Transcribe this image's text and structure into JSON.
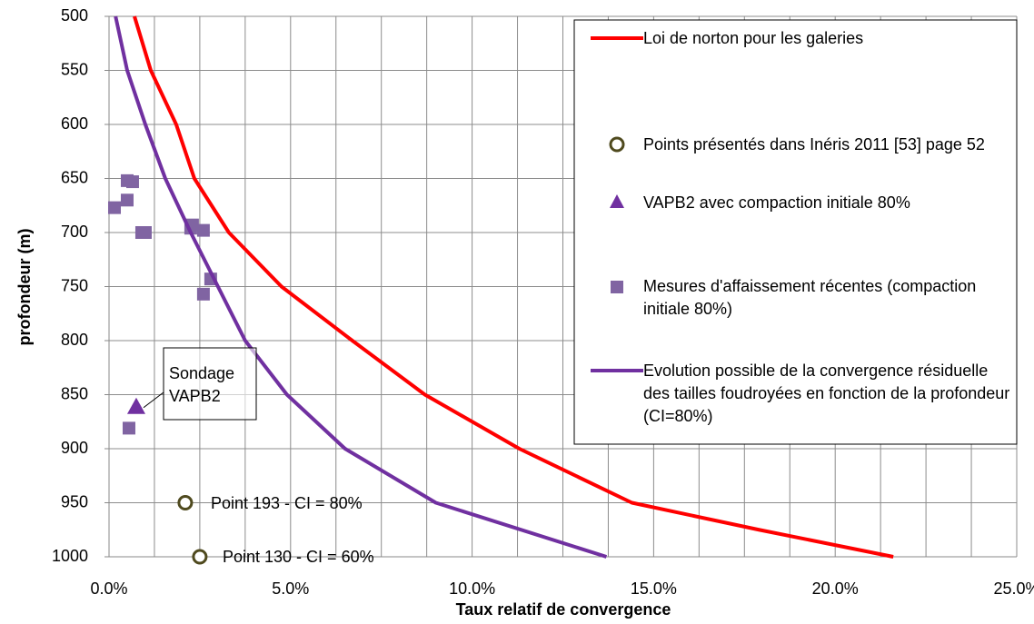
{
  "chart_data": {
    "type": "line",
    "x_label": "Taux relatif de convergence",
    "y_label": "profondeur (m)",
    "xlim": [
      0,
      25
    ],
    "xticks": [
      {
        "value": 0,
        "label": "0.0%"
      },
      {
        "value": 5,
        "label": "5.0%"
      },
      {
        "value": 10,
        "label": "10.0%"
      },
      {
        "value": 15,
        "label": "15.0%"
      },
      {
        "value": 20,
        "label": "20.0%"
      },
      {
        "value": 25,
        "label": "25.0%"
      }
    ],
    "x_minor_grid": [
      1.25,
      2.5,
      3.75,
      6.25,
      7.5,
      8.75,
      11.25,
      12.5,
      13.75,
      16.25,
      17.5,
      18.75,
      21.25,
      22.5,
      23.75
    ],
    "ylim": [
      500,
      1000
    ],
    "y_inverted": true,
    "yticks": [
      500,
      550,
      600,
      650,
      700,
      750,
      800,
      850,
      900,
      950,
      1000
    ],
    "grid": true,
    "series": [
      {
        "name": "Loi de norton pour les galeries",
        "kind": "line",
        "color": "#ff0000",
        "x": [
          0.7,
          1.15,
          1.85,
          2.35,
          3.3,
          4.75,
          6.7,
          8.7,
          11.3,
          14.4,
          17.9,
          21.6
        ],
        "y": [
          500,
          550,
          600,
          650,
          700,
          750,
          800,
          850,
          900,
          950,
          975,
          1000
        ]
      },
      {
        "name": "Points présentés dans Inéris 2011 [53] page 52",
        "kind": "circle",
        "color": "#4f4a1e",
        "x": [
          2.1,
          2.5
        ],
        "y": [
          950,
          1000
        ]
      },
      {
        "name": "VAPB2 avec compaction initiale 80%",
        "kind": "triangle",
        "color": "#7030a0",
        "x": [
          0.75
        ],
        "y": [
          862
        ]
      },
      {
        "name": "Mesures d'affaissement récentes (compaction initiale 80%)",
        "kind": "square",
        "color": "#8064a2",
        "x": [
          0.5,
          0.65,
          0.15,
          0.5,
          0.9,
          1.0,
          2.3,
          2.25,
          2.6,
          2.8,
          2.6,
          0.55
        ],
        "y": [
          652,
          653,
          677,
          670,
          700,
          700,
          693,
          696,
          698,
          743,
          757,
          881
        ]
      },
      {
        "name": "Evolution possible de la convergence résiduelle des tailles foudroyées  en fonction de la profondeur (CI=80%)",
        "kind": "line",
        "color": "#7030a0",
        "x": [
          0.18,
          0.5,
          1.0,
          1.55,
          2.25,
          3.0,
          3.75,
          4.9,
          6.5,
          9.0,
          13.7
        ],
        "y": [
          500,
          550,
          600,
          650,
          700,
          750,
          800,
          850,
          900,
          950,
          1000
        ]
      }
    ],
    "annotations": [
      "Sondage VAPB2",
      "Point 193 - CI = 80%",
      "Point 130 - CI = 60%"
    ]
  }
}
